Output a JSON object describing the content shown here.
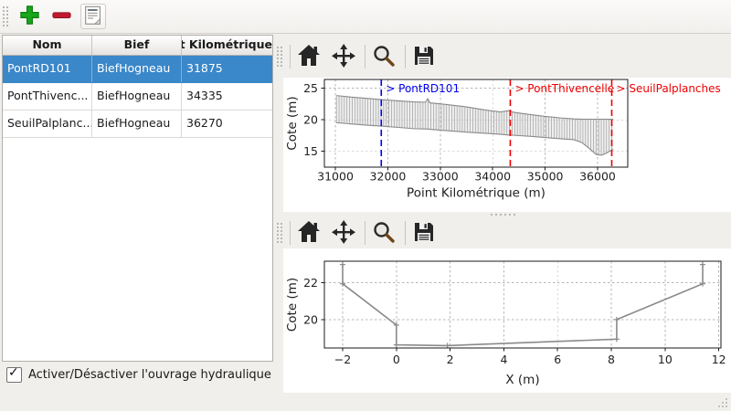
{
  "window": {
    "bg_color": "#f1efec"
  },
  "main_toolbar": {
    "buttons": [
      {
        "name": "add-structure",
        "icon": "plus-icon",
        "color": "#17a61b"
      },
      {
        "name": "remove-structure",
        "icon": "minus-icon",
        "color": "#c01a30"
      },
      {
        "name": "edit-notes",
        "icon": "notes-icon"
      }
    ]
  },
  "structures_table": {
    "columns": [
      "Nom",
      "Bief",
      "Point Kilométrique"
    ],
    "rows": [
      {
        "nom": "PontRD101",
        "bief": "BiefHogneau",
        "pk": "31875",
        "selected": true
      },
      {
        "nom": "PontThivenc...",
        "bief": "BiefHogneau",
        "pk": "34335",
        "selected": false
      },
      {
        "nom": "SeuilPalplanc...",
        "bief": "BiefHogneau",
        "pk": "36270",
        "selected": false
      }
    ],
    "selection_color": "#3a87c9"
  },
  "enable_checkbox": {
    "label": "Activer/Désactiver l'ouvrage hydraulique",
    "checked": true
  },
  "plot_toolbar": {
    "icons": [
      "home-icon",
      "pan-icon",
      "zoom-icon",
      "save-icon"
    ]
  },
  "chart_data": [
    {
      "type": "area",
      "title": "",
      "xlabel": "Point Kilométrique (m)",
      "ylabel": "Cote (m)",
      "xlim": [
        30790,
        36575
      ],
      "ylim": [
        12.5,
        26.4
      ],
      "xticks": [
        31000,
        32000,
        33000,
        34000,
        35000,
        36000
      ],
      "xtick_labels": [
        "31000",
        "32000",
        "33000",
        "34000",
        "35000",
        "36000"
      ],
      "yticks": [
        15,
        20,
        25
      ],
      "ytick_labels": [
        "15",
        "20",
        "25"
      ],
      "grid": true,
      "profile_band": {
        "comment": "longitudinal profile envelope: [pk, top_elevation, bottom_elevation]",
        "hatch_step_m": 50,
        "hatch_color": "#a2a2a2",
        "edge_color": "#8a8a8a",
        "fill_color": "#c9c9c9",
        "points": [
          [
            31020,
            23.85,
            19.55
          ],
          [
            31300,
            23.6,
            19.35
          ],
          [
            31600,
            23.4,
            19.15
          ],
          [
            31875,
            23.2,
            19.0
          ],
          [
            32200,
            23.0,
            18.8
          ],
          [
            32500,
            22.85,
            18.6
          ],
          [
            32720,
            22.8,
            18.55
          ],
          [
            32760,
            23.35,
            18.55
          ],
          [
            32800,
            22.7,
            18.5
          ],
          [
            33100,
            22.45,
            18.3
          ],
          [
            33500,
            22.05,
            18.05
          ],
          [
            33900,
            21.5,
            17.85
          ],
          [
            34150,
            21.25,
            17.7
          ],
          [
            34300,
            21.45,
            17.6
          ],
          [
            34400,
            21.2,
            17.55
          ],
          [
            34700,
            20.85,
            17.4
          ],
          [
            35000,
            20.55,
            17.2
          ],
          [
            35300,
            20.3,
            17.0
          ],
          [
            35550,
            20.15,
            16.85
          ],
          [
            35700,
            20.1,
            16.4
          ],
          [
            35850,
            20.1,
            15.4
          ],
          [
            35975,
            20.1,
            14.5
          ],
          [
            36075,
            20.1,
            14.4
          ],
          [
            36175,
            20.1,
            14.75
          ],
          [
            36300,
            20.1,
            15.35
          ]
        ]
      },
      "annotations": [
        {
          "label": "> PontRD101",
          "x": 31875,
          "color": "#0000ee",
          "style": "dashed"
        },
        {
          "label": "> PontThivencelle",
          "x": 34335,
          "color": "#ee0000",
          "style": "dashed"
        },
        {
          "label": "> SeuilPalplanches",
          "x": 36270,
          "color": "#ee0000",
          "style": "dashed"
        }
      ]
    },
    {
      "type": "line",
      "title": "",
      "xlabel": "X (m)",
      "ylabel": "Cote (m)",
      "xlim": [
        -2.68,
        12.08
      ],
      "ylim": [
        18.45,
        23.18
      ],
      "xticks": [
        -2,
        0,
        2,
        4,
        6,
        8,
        10,
        12
      ],
      "xtick_labels": [
        "−2",
        "0",
        "2",
        "4",
        "6",
        "8",
        "10",
        "12"
      ],
      "yticks": [
        20,
        22
      ],
      "ytick_labels": [
        "20",
        "22"
      ],
      "grid": true,
      "series": [
        {
          "name": "cross-section",
          "color": "#8a8a8a",
          "marker": "+",
          "points": [
            [
              -2,
              23.0
            ],
            [
              -2,
              21.95
            ],
            [
              0,
              19.7
            ],
            [
              0,
              18.62
            ],
            [
              1.9,
              18.58
            ],
            [
              8.2,
              18.93
            ],
            [
              8.2,
              20.0
            ],
            [
              11.4,
              21.95
            ],
            [
              11.4,
              23.0
            ]
          ]
        }
      ]
    }
  ]
}
